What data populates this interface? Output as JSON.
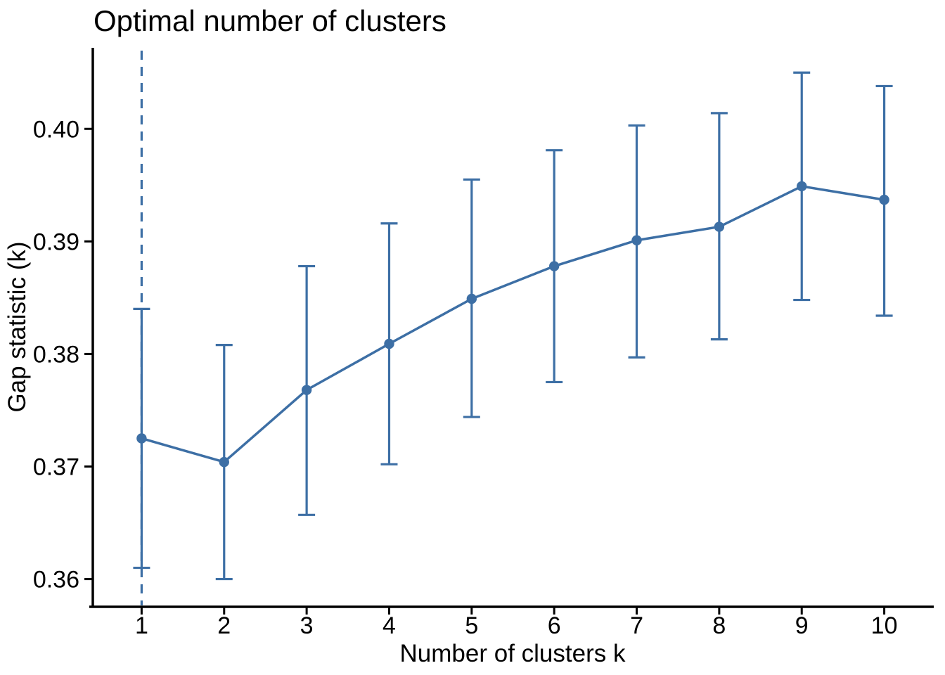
{
  "chart_data": {
    "type": "line",
    "title": "Optimal number of clusters",
    "xlabel": "Number of clusters k",
    "ylabel": "Gap statistic (k)",
    "x": [
      1,
      2,
      3,
      4,
      5,
      6,
      7,
      8,
      9,
      10
    ],
    "series": [
      {
        "name": "Gap statistic",
        "values": [
          0.3725,
          0.3704,
          0.3768,
          0.3809,
          0.3849,
          0.3878,
          0.3901,
          0.3913,
          0.3949,
          0.3937
        ]
      }
    ],
    "error_low": [
      0.361,
      0.36,
      0.3657,
      0.3702,
      0.3744,
      0.3775,
      0.3797,
      0.3813,
      0.3848,
      0.3834
    ],
    "error_high": [
      0.384,
      0.3808,
      0.3878,
      0.3916,
      0.3955,
      0.3981,
      0.4003,
      0.4014,
      0.405,
      0.4038
    ],
    "vline_x": 1,
    "vline_style": "dashed",
    "x_ticks": [
      "1",
      "2",
      "3",
      "4",
      "5",
      "6",
      "7",
      "8",
      "9",
      "10"
    ],
    "y_ticks": [
      "0.36",
      "0.37",
      "0.38",
      "0.39",
      "0.40"
    ],
    "y_tick_values": [
      0.36,
      0.37,
      0.38,
      0.39,
      0.4
    ],
    "xlim": [
      0.4,
      10.6
    ],
    "ylim": [
      0.3576,
      0.4072
    ],
    "grid": false,
    "legend": null,
    "marker": "circle",
    "colors": {
      "line": "#3D6FA5",
      "axis": "#000000",
      "text": "#000000",
      "background": "#FFFFFF"
    }
  }
}
